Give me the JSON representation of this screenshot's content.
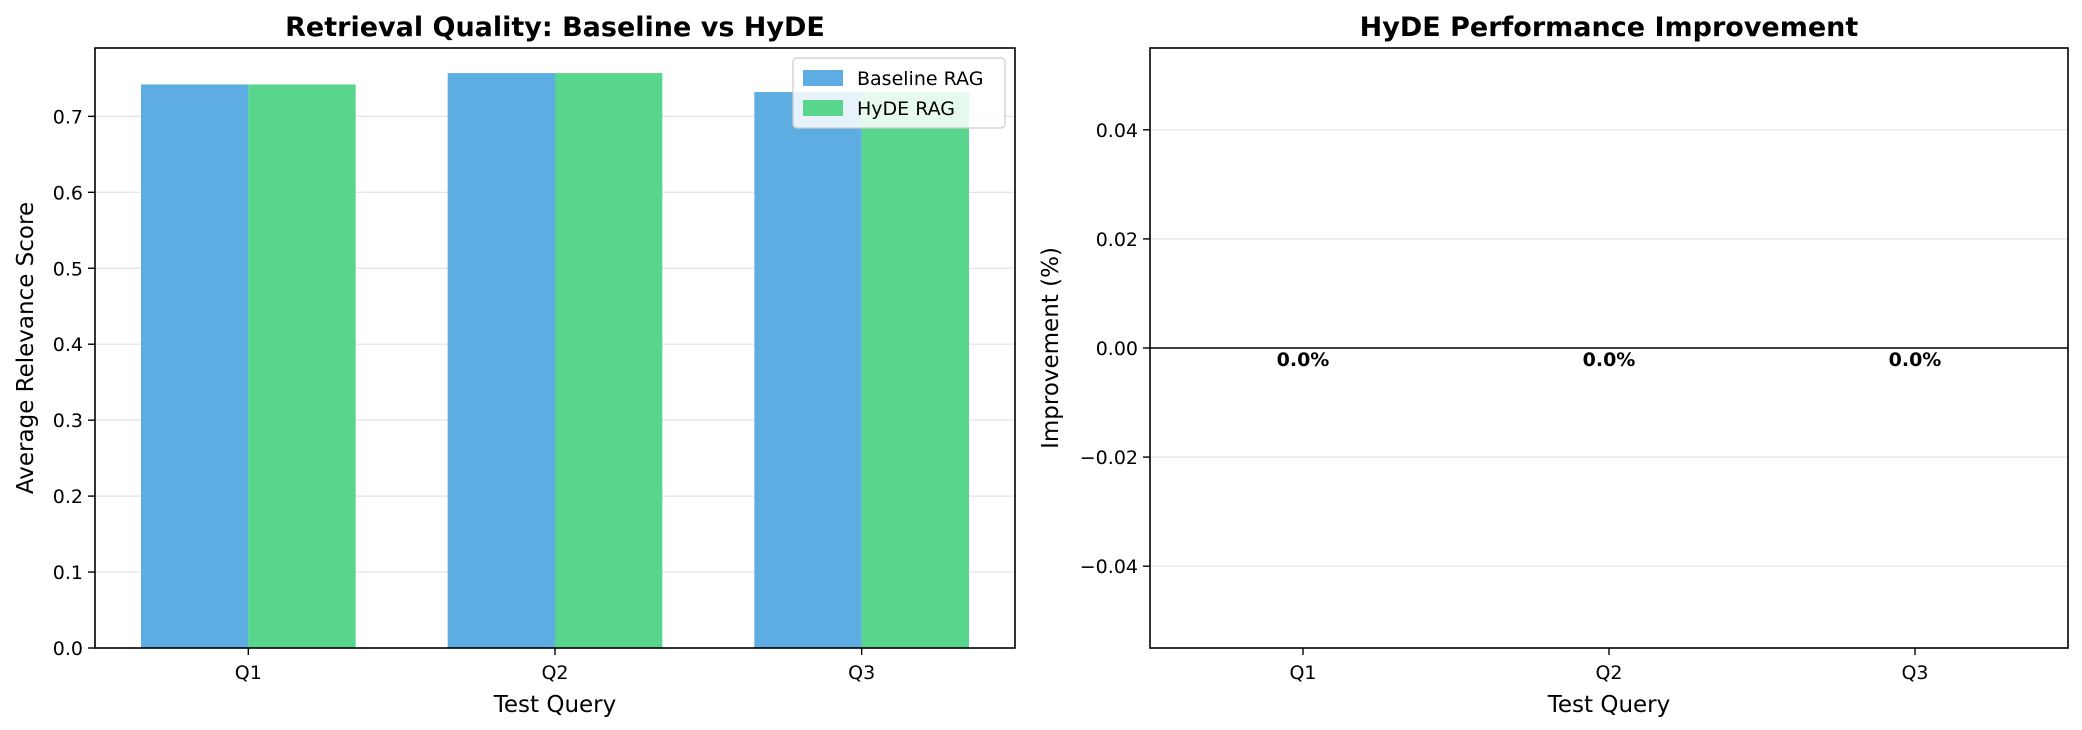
{
  "chart_data": [
    {
      "type": "bar",
      "title": "Retrieval Quality: Baseline vs HyDE",
      "xlabel": "Test Query",
      "ylabel": "Average Relevance Score",
      "categories": [
        "Q1",
        "Q2",
        "Q3"
      ],
      "ylim": [
        0,
        0.79
      ],
      "yticks": [
        "0.0",
        "0.1",
        "0.2",
        "0.3",
        "0.4",
        "0.5",
        "0.6",
        "0.7"
      ],
      "grid": true,
      "legend_position": "top-right",
      "series": [
        {
          "name": "Baseline RAG",
          "color": "#5DADE2",
          "values": [
            0.742,
            0.757,
            0.732
          ]
        },
        {
          "name": "HyDE RAG",
          "color": "#58D68D",
          "values": [
            0.742,
            0.757,
            0.732
          ]
        }
      ]
    },
    {
      "type": "bar",
      "title": "HyDE Performance Improvement",
      "xlabel": "Test Query",
      "ylabel": "Improvement (%)",
      "categories": [
        "Q1",
        "Q2",
        "Q3"
      ],
      "ylim": [
        -0.055,
        0.055
      ],
      "yticks": [
        "−0.04",
        "−0.02",
        "0.00",
        "0.02",
        "0.04"
      ],
      "grid": true,
      "values": [
        0.0,
        0.0,
        0.0
      ],
      "data_labels": [
        "0.0%",
        "0.0%",
        "0.0%"
      ]
    }
  ]
}
